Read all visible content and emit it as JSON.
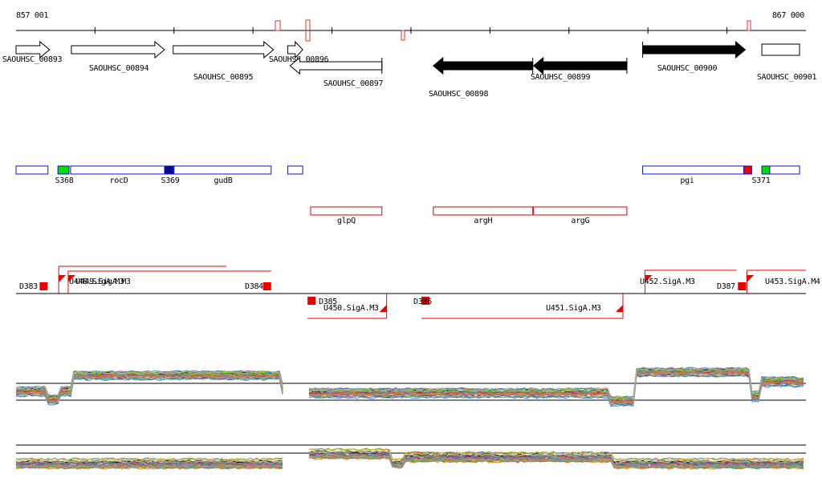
{
  "axis": {
    "start_label": "857 001",
    "end_label": "867 000",
    "start": 857001,
    "end": 867000
  },
  "genes": [
    {
      "label": "SAOUHSC_00893",
      "start": 857001,
      "end": 857425,
      "strand": "+",
      "style": "open"
    },
    {
      "label": "SAOUHSC_00894",
      "start": 857701,
      "end": 858880,
      "strand": "+",
      "style": "open"
    },
    {
      "label": "SAOUHSC_00895",
      "start": 858990,
      "end": 860260,
      "strand": "+",
      "style": "open"
    },
    {
      "label": "SAOUHSC_00896",
      "start": 860440,
      "end": 860630,
      "strand": "+",
      "style": "open"
    },
    {
      "label": "SAOUHSC_00897",
      "start": 860470,
      "end": 861632,
      "strand": "-",
      "style": "open"
    },
    {
      "label": "SAOUHSC_00898",
      "start": 862283,
      "end": 863542,
      "strand": "-",
      "style": "filled"
    },
    {
      "label": "SAOUHSC_00899",
      "start": 863552,
      "end": 864733,
      "strand": "-",
      "style": "filled"
    },
    {
      "label": "SAOUHSC_00900",
      "start": 864933,
      "end": 866232,
      "strand": "+",
      "style": "filled"
    },
    {
      "label": "SAOUHSC_00901",
      "start": 866442,
      "end": 866919,
      "strand": "+",
      "style": "open"
    }
  ],
  "features": [
    {
      "label": "",
      "start": 857001,
      "end": 857405,
      "color": "#1010c0",
      "fill": "#ffffff"
    },
    {
      "label": "S368",
      "start": 857531,
      "end": 857671,
      "color": "#1010c0",
      "fill": "#00dd00"
    },
    {
      "label": "rocD",
      "start": 857691,
      "end": 859001,
      "color": "#1010c0",
      "fill": "#ffffff"
    },
    {
      "label": "S369",
      "start": 858881,
      "end": 858991,
      "color": "#1010c0",
      "fill": "#0a0a90"
    },
    {
      "label": "gudB",
      "start": 859001,
      "end": 860230,
      "color": "#1010c0",
      "fill": "#ffffff"
    },
    {
      "label": "",
      "start": 860440,
      "end": 860630,
      "color": "#1010c0",
      "fill": "#ffffff"
    },
    {
      "label": "pgi",
      "start": 864933,
      "end": 866213,
      "color": "#1010c0",
      "fill": "#ffffff"
    },
    {
      "label": "",
      "start": 866213,
      "end": 866313,
      "color": "#1010c0",
      "fill": "#ee0000"
    },
    {
      "label": "S371",
      "start": 866442,
      "end": 866542,
      "color": "#1010c0",
      "fill": "#00dd00"
    },
    {
      "label": "",
      "start": 866542,
      "end": 866919,
      "color": "#1010c0",
      "fill": "#ffffff"
    }
  ],
  "red_features": [
    {
      "label": "glpQ",
      "start": 860730,
      "end": 861632
    },
    {
      "label": "argH",
      "start": 862283,
      "end": 863542
    },
    {
      "label": "argG",
      "start": 863552,
      "end": 864733
    }
  ],
  "signals_above": [
    {
      "label": "D383",
      "start": 857290,
      "end": 857401,
      "type": "box"
    },
    {
      "label": "U449.SigA.M3",
      "start": 857541,
      "end": 859661,
      "type": "flag"
    },
    {
      "label": "U448.SigA.M3",
      "start": 857661,
      "end": 860230,
      "type": "flag"
    },
    {
      "label": "D384",
      "start": 860099,
      "end": 860230,
      "type": "box"
    },
    {
      "label": "U452.SigA.M3",
      "start": 864963,
      "end": 866123,
      "type": "flag"
    },
    {
      "label": "D387",
      "start": 866140,
      "end": 866241,
      "type": "box"
    },
    {
      "label": "U453.SigA.M4",
      "start": 866252,
      "end": 867000,
      "type": "flag"
    }
  ],
  "signals_below": [
    {
      "label": "D385",
      "start": 860691,
      "end": 860791,
      "type": "box"
    },
    {
      "label": "U450.SigA.M3",
      "start": 860691,
      "end": 861692,
      "type": "flag"
    },
    {
      "label": "D386",
      "start": 862133,
      "end": 862233,
      "type": "box"
    },
    {
      "label": "U451.SigA.M3",
      "start": 862133,
      "end": 864683,
      "type": "flag"
    }
  ],
  "colors": {
    "gene_filled": "#000000",
    "feature_red": "#dd0000",
    "signal_red": "#ee0000",
    "feature_blue": "#1010c0",
    "reference_line": "#000000"
  }
}
